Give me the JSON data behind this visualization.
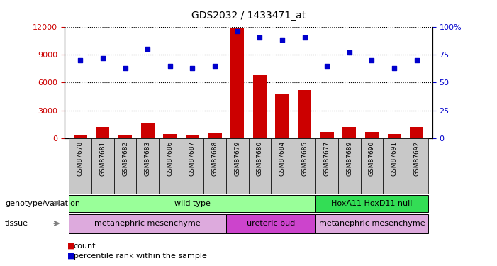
{
  "title": "GDS2032 / 1433471_at",
  "samples": [
    "GSM87678",
    "GSM87681",
    "GSM87682",
    "GSM87683",
    "GSM87686",
    "GSM87687",
    "GSM87688",
    "GSM87679",
    "GSM87680",
    "GSM87684",
    "GSM87685",
    "GSM87677",
    "GSM87689",
    "GSM87690",
    "GSM87691",
    "GSM87692"
  ],
  "counts": [
    400,
    1200,
    300,
    1700,
    450,
    300,
    600,
    11800,
    6800,
    4800,
    5200,
    700,
    1200,
    700,
    450,
    1200
  ],
  "percentiles": [
    70,
    72,
    63,
    80,
    65,
    63,
    65,
    96,
    90,
    88,
    90,
    65,
    77,
    70,
    63,
    70
  ],
  "ylim_left": [
    0,
    12000
  ],
  "ylim_right": [
    0,
    100
  ],
  "yticks_left": [
    0,
    3000,
    6000,
    9000,
    12000
  ],
  "yticks_right": [
    0,
    25,
    50,
    75,
    100
  ],
  "bar_color": "#cc0000",
  "dot_color": "#0000cc",
  "genotype_labels": [
    {
      "label": "wild type",
      "start": 0,
      "end": 10,
      "color": "#99ff99"
    },
    {
      "label": "HoxA11 HoxD11 null",
      "start": 11,
      "end": 15,
      "color": "#33dd55"
    }
  ],
  "tissue_labels": [
    {
      "label": "metanephric mesenchyme",
      "start": 0,
      "end": 6,
      "color": "#ddaadd"
    },
    {
      "label": "ureteric bud",
      "start": 7,
      "end": 10,
      "color": "#cc44cc"
    },
    {
      "label": "metanephric mesenchyme",
      "start": 11,
      "end": 15,
      "color": "#ddaadd"
    }
  ],
  "legend_count_color": "#cc0000",
  "legend_pct_color": "#0000cc",
  "grid_color": "#000000",
  "bg_color": "#ffffff",
  "tick_bg_color": "#c8c8c8"
}
